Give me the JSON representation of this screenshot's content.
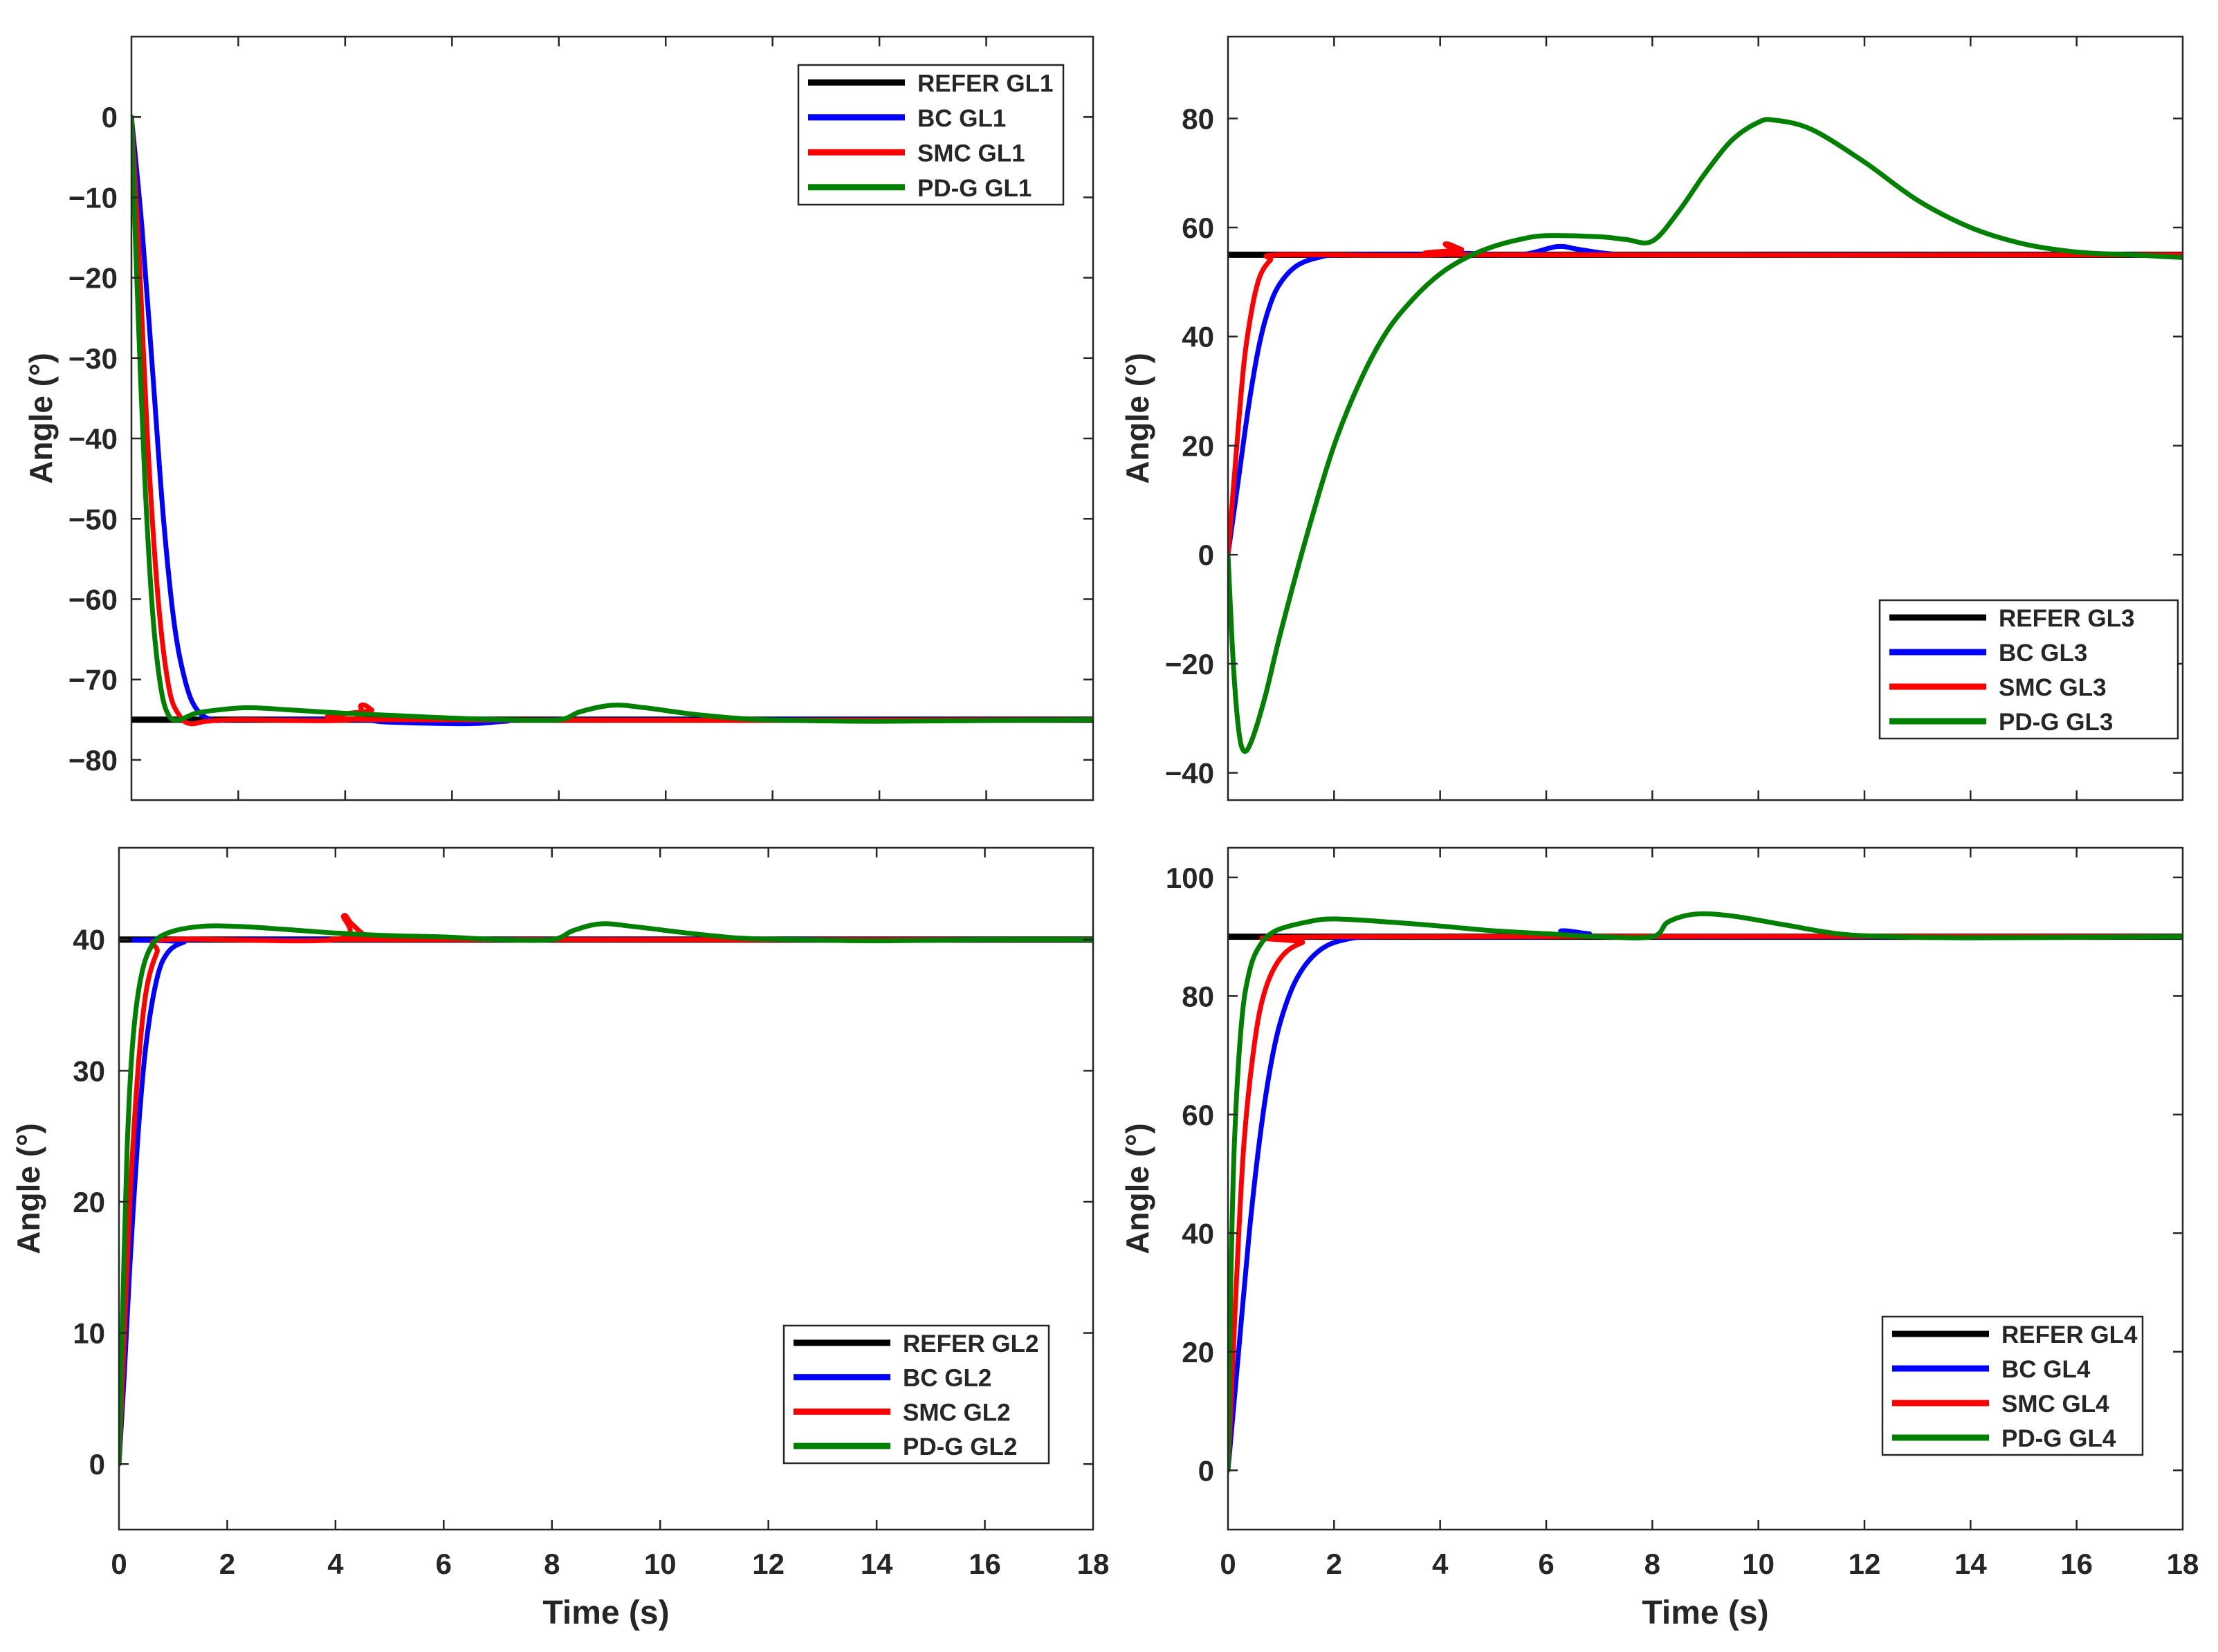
{
  "chart_data": [
    {
      "type": "line",
      "panel": "top-left",
      "title": "",
      "xlabel": "",
      "ylabel": "Angle (°)",
      "xlim": [
        0,
        18
      ],
      "ylim": [
        -85,
        10
      ],
      "xticks": [],
      "yticks": [
        0,
        -10,
        -20,
        -30,
        -40,
        -50,
        -60,
        -70,
        -80
      ],
      "legend_position": "top-right",
      "series": [
        {
          "name": "REFER GL1",
          "color": "#000000",
          "points": [
            [
              0,
              -75
            ],
            [
              18,
              -75
            ]
          ]
        },
        {
          "name": "BC GL1",
          "color": "#0000ff",
          "points": [
            [
              0,
              0
            ],
            [
              0.2,
              -14
            ],
            [
              0.4,
              -32
            ],
            [
              0.6,
              -50
            ],
            [
              0.8,
              -63
            ],
            [
              1.0,
              -70
            ],
            [
              1.2,
              -73.5
            ],
            [
              1.5,
              -75
            ],
            [
              2,
              -75
            ],
            [
              4.2,
              -75
            ],
            [
              4.8,
              -75.3
            ],
            [
              6.3,
              -75.5
            ],
            [
              7,
              -75.2
            ],
            [
              8,
              -75
            ],
            [
              18,
              -75
            ]
          ]
        },
        {
          "name": "SMC GL1",
          "color": "#ff0000",
          "points": [
            [
              0,
              0
            ],
            [
              0.15,
              -18
            ],
            [
              0.3,
              -40
            ],
            [
              0.5,
              -60
            ],
            [
              0.7,
              -71
            ],
            [
              0.9,
              -74.5
            ],
            [
              1.1,
              -75.5
            ],
            [
              1.4,
              -75.2
            ],
            [
              2,
              -75
            ],
            [
              4.1,
              -75
            ],
            [
              4.3,
              -73.2
            ],
            [
              4.5,
              -73.8
            ],
            [
              4.7,
              -75
            ],
            [
              18,
              -75
            ]
          ]
        },
        {
          "name": "PD-G GL1",
          "color": "#008000",
          "points": [
            [
              0,
              0
            ],
            [
              0.1,
              -20
            ],
            [
              0.25,
              -45
            ],
            [
              0.4,
              -62
            ],
            [
              0.55,
              -71
            ],
            [
              0.7,
              -74.5
            ],
            [
              0.9,
              -75
            ],
            [
              1.2,
              -74.2
            ],
            [
              1.6,
              -73.8
            ],
            [
              2.2,
              -73.5
            ],
            [
              3,
              -73.8
            ],
            [
              4,
              -74.2
            ],
            [
              5,
              -74.5
            ],
            [
              6,
              -74.8
            ],
            [
              7,
              -75
            ],
            [
              8,
              -75
            ],
            [
              8.4,
              -74
            ],
            [
              9,
              -73.2
            ],
            [
              9.6,
              -73.5
            ],
            [
              10.5,
              -74.3
            ],
            [
              11.5,
              -74.9
            ],
            [
              12.5,
              -75.1
            ],
            [
              14,
              -75.2
            ],
            [
              16,
              -75.1
            ],
            [
              18,
              -75
            ]
          ]
        }
      ]
    },
    {
      "type": "line",
      "panel": "top-right",
      "title": "",
      "xlabel": "",
      "ylabel": "Angle (°)",
      "xlim": [
        0,
        18
      ],
      "ylim": [
        -45,
        95
      ],
      "xticks": [],
      "yticks": [
        80,
        60,
        40,
        20,
        0,
        -20,
        -40
      ],
      "legend_position": "bottom-right",
      "series": [
        {
          "name": "REFER GL3",
          "color": "#000000",
          "points": [
            [
              0,
              55
            ],
            [
              18,
              55
            ]
          ]
        },
        {
          "name": "BC GL3",
          "color": "#0000ff",
          "points": [
            [
              0,
              0
            ],
            [
              0.2,
              14
            ],
            [
              0.4,
              28
            ],
            [
              0.6,
              39
            ],
            [
              0.8,
              46
            ],
            [
              1.0,
              50
            ],
            [
              1.3,
              53
            ],
            [
              1.7,
              54.5
            ],
            [
              2.2,
              55
            ],
            [
              4,
              55
            ],
            [
              4.4,
              55.3
            ],
            [
              5.5,
              55
            ],
            [
              6.2,
              56.5
            ],
            [
              6.6,
              56
            ],
            [
              7.2,
              55.2
            ],
            [
              8,
              55
            ],
            [
              18,
              55
            ]
          ]
        },
        {
          "name": "SMC GL3",
          "color": "#ff0000",
          "points": [
            [
              0,
              0
            ],
            [
              0.15,
              18
            ],
            [
              0.3,
              35
            ],
            [
              0.45,
              45
            ],
            [
              0.6,
              51
            ],
            [
              0.8,
              54
            ],
            [
              1.0,
              55
            ],
            [
              4,
              55
            ],
            [
              4.1,
              57
            ],
            [
              4.4,
              56
            ],
            [
              4.8,
              55
            ],
            [
              18,
              55
            ]
          ]
        },
        {
          "name": "PD-G GL3",
          "color": "#008000",
          "points": [
            [
              0,
              0
            ],
            [
              0.1,
              -20
            ],
            [
              0.2,
              -32
            ],
            [
              0.3,
              -36
            ],
            [
              0.45,
              -34
            ],
            [
              0.7,
              -26
            ],
            [
              1.0,
              -14
            ],
            [
              1.5,
              4
            ],
            [
              2,
              20
            ],
            [
              2.5,
              32
            ],
            [
              3,
              41
            ],
            [
              3.5,
              47
            ],
            [
              4,
              51.5
            ],
            [
              4.5,
              54.5
            ],
            [
              5,
              56.5
            ],
            [
              5.5,
              57.8
            ],
            [
              6,
              58.5
            ],
            [
              7,
              58.3
            ],
            [
              7.5,
              57.8
            ],
            [
              8,
              57.5
            ],
            [
              8.5,
              63
            ],
            [
              9,
              70
            ],
            [
              9.5,
              76
            ],
            [
              10,
              79.3
            ],
            [
              10.3,
              79.7
            ],
            [
              11,
              78
            ],
            [
              12,
              72
            ],
            [
              13,
              65
            ],
            [
              14,
              60
            ],
            [
              15,
              57
            ],
            [
              16,
              55.5
            ],
            [
              17,
              55
            ],
            [
              18,
              54.5
            ]
          ]
        }
      ]
    },
    {
      "type": "line",
      "panel": "bottom-left",
      "title": "",
      "xlabel": "Time (s)",
      "ylabel": "Angle (°)",
      "xlim": [
        0,
        18
      ],
      "ylim": [
        -5,
        47
      ],
      "xticks": [
        0,
        2,
        4,
        6,
        8,
        10,
        12,
        14,
        16,
        18
      ],
      "yticks": [
        40,
        30,
        20,
        10,
        0
      ],
      "legend_position": "bottom-right",
      "series": [
        {
          "name": "REFER GL2",
          "color": "#000000",
          "points": [
            [
              0,
              40
            ],
            [
              18,
              40
            ]
          ]
        },
        {
          "name": "BC GL2",
          "color": "#0000ff",
          "points": [
            [
              0,
              0
            ],
            [
              0.1,
              7
            ],
            [
              0.2,
              15
            ],
            [
              0.35,
              25
            ],
            [
              0.5,
              32
            ],
            [
              0.7,
              37
            ],
            [
              0.9,
              39
            ],
            [
              1.2,
              39.8
            ],
            [
              1.6,
              40
            ],
            [
              18,
              40
            ]
          ]
        },
        {
          "name": "SMC GL2",
          "color": "#ff0000",
          "points": [
            [
              0,
              0
            ],
            [
              0.1,
              10
            ],
            [
              0.2,
              20
            ],
            [
              0.35,
              30
            ],
            [
              0.5,
              36
            ],
            [
              0.7,
              39
            ],
            [
              0.9,
              40
            ],
            [
              4,
              40
            ],
            [
              4.15,
              41.8
            ],
            [
              4.3,
              41.2
            ],
            [
              4.6,
              40.2
            ],
            [
              5,
              40
            ],
            [
              18,
              40
            ]
          ]
        },
        {
          "name": "PD-G GL2",
          "color": "#008000",
          "points": [
            [
              0,
              0
            ],
            [
              0.07,
              12
            ],
            [
              0.15,
              24
            ],
            [
              0.25,
              32
            ],
            [
              0.4,
              37
            ],
            [
              0.6,
              39.5
            ],
            [
              0.9,
              40.5
            ],
            [
              1.5,
              41
            ],
            [
              2.2,
              41
            ],
            [
              3,
              40.8
            ],
            [
              4,
              40.5
            ],
            [
              5,
              40.3
            ],
            [
              6,
              40.2
            ],
            [
              7,
              40
            ],
            [
              8,
              40
            ],
            [
              8.4,
              40.7
            ],
            [
              8.9,
              41.2
            ],
            [
              9.5,
              41
            ],
            [
              10.5,
              40.5
            ],
            [
              11.5,
              40.1
            ],
            [
              12.5,
              40
            ],
            [
              14,
              39.9
            ],
            [
              16,
              40
            ],
            [
              18,
              40
            ]
          ]
        }
      ]
    },
    {
      "type": "line",
      "panel": "bottom-right",
      "title": "",
      "xlabel": "Time (s)",
      "ylabel": "Angle (°)",
      "xlim": [
        0,
        18
      ],
      "ylim": [
        -10,
        105
      ],
      "xticks": [
        0,
        2,
        4,
        6,
        8,
        10,
        12,
        14,
        16,
        18
      ],
      "yticks": [
        100,
        80,
        60,
        40,
        20,
        0
      ],
      "legend_position": "bottom-right",
      "series": [
        {
          "name": "REFER GL4",
          "color": "#000000",
          "points": [
            [
              0,
              90
            ],
            [
              18,
              90
            ]
          ]
        },
        {
          "name": "BC GL4",
          "color": "#0000ff",
          "points": [
            [
              0,
              0
            ],
            [
              0.2,
              20
            ],
            [
              0.4,
              40
            ],
            [
              0.6,
              56
            ],
            [
              0.8,
              68
            ],
            [
              1.0,
              76
            ],
            [
              1.3,
              83
            ],
            [
              1.7,
              87.5
            ],
            [
              2.2,
              89.5
            ],
            [
              3,
              90
            ],
            [
              6,
              90
            ],
            [
              6.3,
              91
            ],
            [
              6.8,
              90.5
            ],
            [
              7.5,
              90
            ],
            [
              18,
              90
            ]
          ]
        },
        {
          "name": "SMC GL4",
          "color": "#ff0000",
          "points": [
            [
              0,
              0
            ],
            [
              0.15,
              30
            ],
            [
              0.3,
              55
            ],
            [
              0.5,
              72
            ],
            [
              0.7,
              81
            ],
            [
              1.0,
              86.5
            ],
            [
              1.4,
              89
            ],
            [
              2,
              90
            ],
            [
              18,
              90
            ]
          ]
        },
        {
          "name": "PD-G GL4",
          "color": "#008000",
          "points": [
            [
              0,
              0
            ],
            [
              0.05,
              30
            ],
            [
              0.12,
              55
            ],
            [
              0.25,
              75
            ],
            [
              0.4,
              84
            ],
            [
              0.6,
              88.5
            ],
            [
              0.9,
              91
            ],
            [
              1.5,
              92.5
            ],
            [
              2,
              93
            ],
            [
              3,
              92.5
            ],
            [
              4,
              91.8
            ],
            [
              5,
              91
            ],
            [
              6,
              90.5
            ],
            [
              7,
              90
            ],
            [
              8,
              90
            ],
            [
              8.3,
              92.5
            ],
            [
              8.8,
              93.8
            ],
            [
              9.5,
              93.5
            ],
            [
              10.5,
              92
            ],
            [
              11.5,
              90.5
            ],
            [
              12.5,
              90
            ],
            [
              14,
              89.8
            ],
            [
              16,
              89.9
            ],
            [
              18,
              90
            ]
          ]
        }
      ]
    }
  ]
}
